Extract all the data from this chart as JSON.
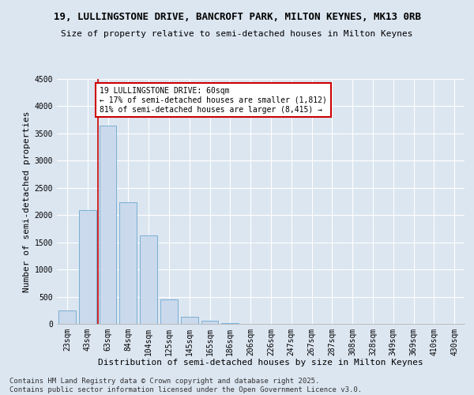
{
  "title_line1": "19, LULLINGSTONE DRIVE, BANCROFT PARK, MILTON KEYNES, MK13 0RB",
  "title_line2": "Size of property relative to semi-detached houses in Milton Keynes",
  "xlabel": "Distribution of semi-detached houses by size in Milton Keynes",
  "ylabel": "Number of semi-detached properties",
  "categories": [
    "23sqm",
    "43sqm",
    "63sqm",
    "84sqm",
    "104sqm",
    "125sqm",
    "145sqm",
    "165sqm",
    "186sqm",
    "206sqm",
    "226sqm",
    "247sqm",
    "267sqm",
    "287sqm",
    "308sqm",
    "328sqm",
    "349sqm",
    "369sqm",
    "410sqm",
    "430sqm"
  ],
  "values": [
    250,
    2090,
    3640,
    2230,
    1620,
    450,
    130,
    65,
    10,
    4,
    2,
    1,
    0,
    0,
    0,
    0,
    0,
    0,
    0,
    0
  ],
  "bar_color": "#cad9ec",
  "bar_edge_color": "#7aafd4",
  "highlight_line_color": "#cc0000",
  "annotation_box_color": "#ffffff",
  "annotation_box_edge_color": "#cc0000",
  "annotation_text_line1": "19 LULLINGSTONE DRIVE: 60sqm",
  "annotation_text_line2": "← 17% of semi-detached houses are smaller (1,812)",
  "annotation_text_line3": "81% of semi-detached houses are larger (8,415) →",
  "ylim": [
    0,
    4500
  ],
  "yticks": [
    0,
    500,
    1000,
    1500,
    2000,
    2500,
    3000,
    3500,
    4000,
    4500
  ],
  "footer_line1": "Contains HM Land Registry data © Crown copyright and database right 2025.",
  "footer_line2": "Contains public sector information licensed under the Open Government Licence v3.0.",
  "background_color": "#dce6f1",
  "title1_fontsize": 9,
  "title2_fontsize": 8,
  "axis_label_fontsize": 8,
  "tick_fontsize": 7,
  "annotation_fontsize": 7,
  "footer_fontsize": 6.5
}
